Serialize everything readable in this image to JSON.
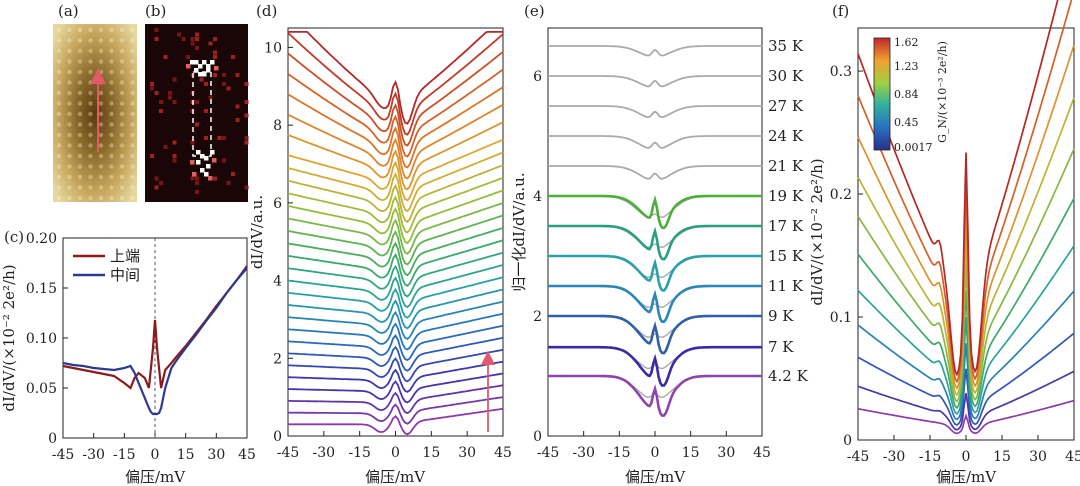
{
  "figure": {
    "panel_labels": [
      "(a)",
      "(b)",
      "(c)",
      "(d)",
      "(e)",
      "(f)"
    ],
    "colors": {
      "upper": "#8b1a1a",
      "middle": "#2b3a8f",
      "gray": "#a9a9a9",
      "arrow": "#e05a6a"
    }
  },
  "chart_data": [
    {
      "id": "c",
      "type": "line",
      "xlabel": "偏压/mV",
      "ylabel": "dI/dV/(×10⁻² 2e²/h)",
      "xlim": [
        -45,
        45
      ],
      "ylim": [
        0,
        0.2
      ],
      "xticks": [
        -45,
        -30,
        -15,
        0,
        15,
        30,
        45
      ],
      "yticks": [
        0,
        0.05,
        0.1,
        0.15,
        0.2
      ],
      "ytick_labels": [
        "0",
        "0.05",
        "0.10",
        "0.15",
        "0.20"
      ],
      "grid": false,
      "legend": [
        "上端",
        "中间"
      ],
      "series": [
        {
          "name": "上端",
          "x": [
            -45,
            -40,
            -35,
            -30,
            -25,
            -20,
            -15,
            -12,
            -10,
            -8,
            -5,
            -3,
            -1,
            0,
            1,
            3,
            5,
            8,
            10,
            15,
            20,
            25,
            30,
            35,
            40,
            45
          ],
          "values": [
            0.072,
            0.07,
            0.068,
            0.066,
            0.064,
            0.062,
            0.055,
            0.05,
            0.06,
            0.065,
            0.06,
            0.05,
            0.09,
            0.118,
            0.09,
            0.05,
            0.068,
            0.075,
            0.08,
            0.092,
            0.105,
            0.118,
            0.132,
            0.145,
            0.158,
            0.172
          ]
        },
        {
          "name": "中间",
          "x": [
            -45,
            -40,
            -35,
            -30,
            -25,
            -20,
            -15,
            -12,
            -10,
            -8,
            -5,
            -3,
            -2,
            -1,
            0,
            1,
            2,
            3,
            5,
            8,
            10,
            15,
            20,
            25,
            30,
            35,
            40,
            45
          ],
          "values": [
            0.075,
            0.073,
            0.072,
            0.07,
            0.069,
            0.068,
            0.07,
            0.072,
            0.065,
            0.055,
            0.04,
            0.03,
            0.026,
            0.024,
            0.024,
            0.024,
            0.025,
            0.03,
            0.05,
            0.07,
            0.076,
            0.09,
            0.103,
            0.117,
            0.13,
            0.145,
            0.158,
            0.17
          ]
        }
      ]
    },
    {
      "id": "d",
      "type": "line",
      "xlabel": "偏压/mV",
      "ylabel": "dI/dV/a.u.",
      "xlim": [
        -45,
        45
      ],
      "ylim": [
        0,
        10.5
      ],
      "xticks": [
        -45,
        -30,
        -15,
        0,
        15,
        30,
        45
      ],
      "yticks": [
        0,
        2,
        4,
        6,
        8,
        10
      ],
      "grid": false,
      "note": "waterfall of ~30 dI/dV spectra along the arrow, color from purple (bottom) to red (top)",
      "series_count": 30
    },
    {
      "id": "e",
      "type": "line",
      "xlabel": "偏压/mV",
      "ylabel": "归一化dI/dV/a.u.",
      "xlim": [
        -45,
        45
      ],
      "ylim": [
        0,
        6.8
      ],
      "xticks": [
        -45,
        -30,
        -15,
        0,
        15,
        30,
        45
      ],
      "yticks": [
        0,
        2,
        4,
        6
      ],
      "grid": false,
      "series": [
        {
          "name": "4.2 K",
          "offset": 1.0,
          "color": "#8e44ad"
        },
        {
          "name": "7 K",
          "offset": 1.48,
          "color": "#3a2aa5"
        },
        {
          "name": "9 K",
          "offset": 2.0,
          "color": "#2e5fa8"
        },
        {
          "name": "11 K",
          "offset": 2.5,
          "color": "#2b86b8"
        },
        {
          "name": "15 K",
          "offset": 3.0,
          "color": "#2aa0a8"
        },
        {
          "name": "17 K",
          "offset": 3.5,
          "color": "#2a9f80"
        },
        {
          "name": "19 K",
          "offset": 4.0,
          "color": "#4caf3a"
        },
        {
          "name": "21 K",
          "offset": 4.5,
          "color": "#aaaaaa"
        },
        {
          "name": "24 K",
          "offset": 5.0,
          "color": "#aaaaaa"
        },
        {
          "name": "27 K",
          "offset": 5.5,
          "color": "#aaaaaa"
        },
        {
          "name": "30 K",
          "offset": 6.0,
          "color": "#aaaaaa"
        },
        {
          "name": "35 K",
          "offset": 6.5,
          "color": "#aaaaaa"
        }
      ]
    },
    {
      "id": "f",
      "type": "line",
      "xlabel": "偏压/mV",
      "ylabel": "dI/dV/(×10⁻² 2e²/h)",
      "xlim": [
        -45,
        45
      ],
      "ylim": [
        0,
        0.335
      ],
      "xticks": [
        -45,
        -30,
        -15,
        0,
        15,
        30,
        45
      ],
      "yticks": [
        0,
        0.1,
        0.2,
        0.3
      ],
      "grid": false,
      "colorbar": {
        "label": "G_N/(×10⁻³ 2e²/h)",
        "ticks": [
          "1.62",
          "1.23",
          "0.84",
          "0.45",
          "0.0017"
        ]
      },
      "series_count": 11
    }
  ]
}
